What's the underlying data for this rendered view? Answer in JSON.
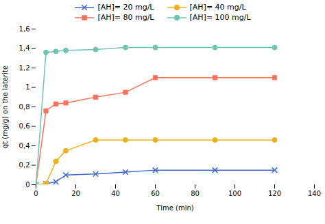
{
  "chart_data": {
    "type": "line",
    "xlabel": "Time (min)",
    "ylabel": "qt (mg/g) on the laterite",
    "series": [
      {
        "name": "[AH]= 20 mg/L",
        "marker": "x",
        "line_style": "solid",
        "x": [
          0,
          5,
          10,
          15,
          30,
          45,
          60,
          90,
          120
        ],
        "values": [
          0,
          0.01,
          0.03,
          0.1,
          0.11,
          0.13,
          0.15,
          0.15,
          0.15
        ]
      },
      {
        "name": "[AH]= 40 mg/L",
        "marker": "circle",
        "line_style": "solid",
        "x": [
          0,
          5,
          10,
          15,
          30,
          45,
          60,
          90,
          120
        ],
        "values": [
          0,
          0.01,
          0.24,
          0.35,
          0.46,
          0.46,
          0.46,
          0.46,
          0.46
        ]
      },
      {
        "name": "[AH]= 80 mg/L",
        "marker": "square",
        "line_style": "solid",
        "x": [
          0,
          5,
          10,
          15,
          30,
          45,
          60,
          90,
          120
        ],
        "values": [
          0,
          0.76,
          0.83,
          0.84,
          0.9,
          0.95,
          1.1,
          1.1,
          1.1
        ]
      },
      {
        "name": "[AH]= 100 mg/L",
        "marker": "circle",
        "line_style": "solid",
        "x": [
          0,
          5,
          10,
          15,
          30,
          45,
          60,
          90,
          120
        ],
        "values": [
          0,
          1.36,
          1.37,
          1.38,
          1.39,
          1.41,
          1.41,
          1.41,
          1.41
        ]
      }
    ],
    "xlim": [
      0,
      140
    ],
    "ylim": [
      0,
      1.6
    ],
    "xticks": [
      0,
      20,
      40,
      60,
      80,
      100,
      120,
      140
    ],
    "yticks": [
      0,
      {
        "value": 0.2,
        "label": "0,2"
      },
      {
        "value": 0.4,
        "label": "0,4"
      },
      {
        "value": 0.6,
        "label": "0,6"
      },
      {
        "value": 0.8,
        "label": "0,8"
      },
      1,
      {
        "value": 1.2,
        "label": "1,2"
      },
      {
        "value": 1.4,
        "label": "1,4"
      },
      {
        "value": 1.6,
        "label": "1,6"
      }
    ],
    "grid": false,
    "legend": "top"
  }
}
